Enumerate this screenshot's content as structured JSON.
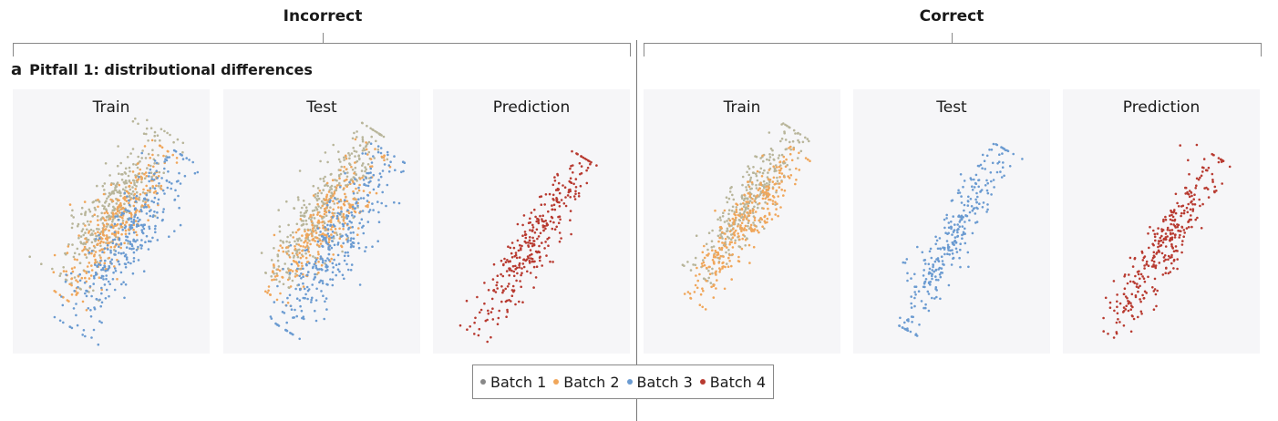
{
  "sections": {
    "incorrect": "Incorrect",
    "correct": "Correct"
  },
  "subfigure": {
    "letter": "a",
    "title": "Pitfall 1: distributional differences"
  },
  "panels": {
    "incorrect_train": "Train",
    "incorrect_test": "Test",
    "incorrect_prediction": "Prediction",
    "correct_train": "Train",
    "correct_test": "Test",
    "correct_prediction": "Prediction"
  },
  "legend": [
    {
      "label": "Batch 1",
      "color": "#b8b59a"
    },
    {
      "label": "Batch 2",
      "color": "#f0a65a"
    },
    {
      "label": "Batch 3",
      "color": "#6b9bd1"
    },
    {
      "label": "Batch 4",
      "color": "#b83a30"
    }
  ],
  "legend_marker_color": "#888888",
  "chart_data": [
    {
      "type": "scatter",
      "panel": "incorrect_train",
      "series": [
        "Batch 1",
        "Batch 2",
        "Batch 3"
      ]
    },
    {
      "type": "scatter",
      "panel": "incorrect_test",
      "series": [
        "Batch 1",
        "Batch 2",
        "Batch 3"
      ]
    },
    {
      "type": "scatter",
      "panel": "incorrect_prediction",
      "series": [
        "Batch 4"
      ]
    },
    {
      "type": "scatter",
      "panel": "correct_train",
      "series": [
        "Batch 1",
        "Batch 2"
      ]
    },
    {
      "type": "scatter",
      "panel": "correct_test",
      "series": [
        "Batch 3"
      ]
    },
    {
      "type": "scatter",
      "panel": "correct_prediction",
      "series": [
        "Batch 4"
      ]
    }
  ]
}
